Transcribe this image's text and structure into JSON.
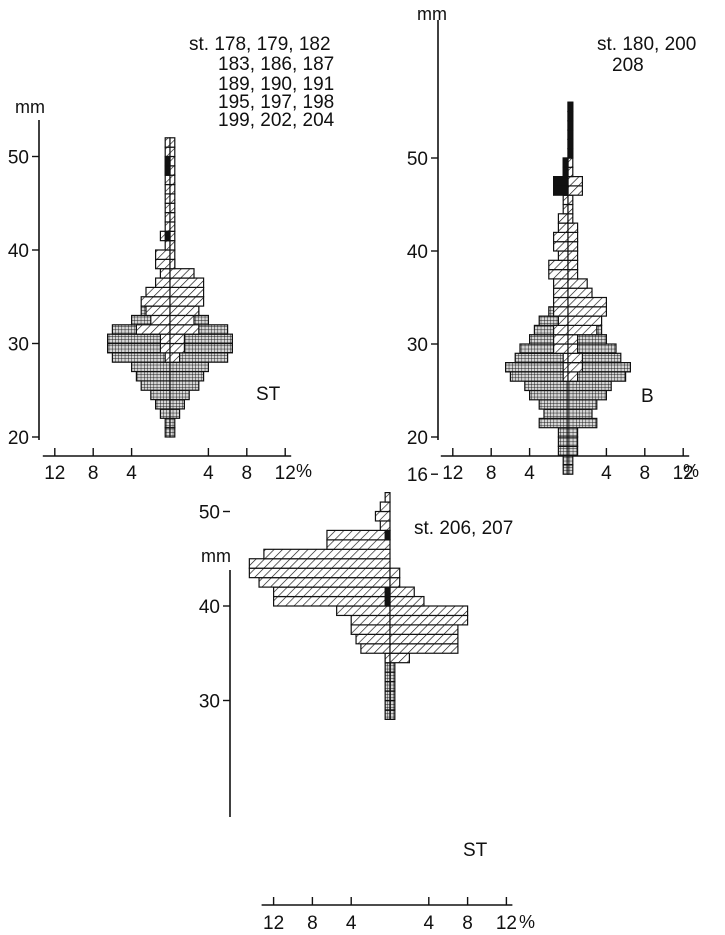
{
  "chart_data": [
    {
      "type": "bar",
      "orientation": "horizontal",
      "panel_label": "ST",
      "stations": [
        "st. 178, 179, 182",
        "183, 186, 187",
        "189, 190, 191",
        "195, 197, 198",
        "199, 202, 204"
      ],
      "y_unit": "mm",
      "x_unit": "%",
      "ylim": [
        20,
        52
      ],
      "yticks": [
        20,
        30,
        40,
        50
      ],
      "xticks": [
        "12",
        "8",
        "4",
        "4",
        "8",
        "12"
      ],
      "sides": [
        "left",
        "right"
      ],
      "series": [
        {
          "fill": "crosshatch",
          "left": [
            [
              20,
              0.5
            ],
            [
              21,
              0.5
            ],
            [
              22,
              1
            ],
            [
              23,
              1.5
            ],
            [
              24,
              2
            ],
            [
              25,
              3
            ],
            [
              26,
              3.5
            ],
            [
              27,
              4
            ],
            [
              28,
              6
            ],
            [
              29,
              6.5
            ],
            [
              30,
              6.5
            ],
            [
              31,
              6
            ],
            [
              32,
              4
            ],
            [
              33,
              3
            ],
            [
              34,
              2.5
            ],
            [
              35,
              1.5
            ],
            [
              36,
              1
            ],
            [
              37,
              0.5
            ],
            [
              38,
              0.5
            ]
          ],
          "right": [
            [
              20,
              0.5
            ],
            [
              21,
              0.5
            ],
            [
              22,
              1
            ],
            [
              23,
              1.5
            ],
            [
              24,
              2
            ],
            [
              25,
              3
            ],
            [
              26,
              3.5
            ],
            [
              27,
              4
            ],
            [
              28,
              6
            ],
            [
              29,
              6.5
            ],
            [
              30,
              6.5
            ],
            [
              31,
              6
            ],
            [
              32,
              4
            ],
            [
              33,
              3
            ],
            [
              34,
              2.5
            ],
            [
              35,
              1.5
            ],
            [
              36,
              1
            ],
            [
              37,
              0.5
            ],
            [
              38,
              0.5
            ]
          ]
        },
        {
          "fill": "hatch",
          "left": [
            [
              28,
              0.5
            ],
            [
              29,
              1
            ],
            [
              30,
              1
            ],
            [
              31,
              3.5
            ],
            [
              32,
              2
            ],
            [
              33,
              2.5
            ],
            [
              34,
              3
            ],
            [
              35,
              2.5
            ],
            [
              36,
              1.5
            ],
            [
              37,
              1
            ],
            [
              38,
              1.5
            ],
            [
              39,
              1.5
            ],
            [
              40,
              0.5
            ],
            [
              41,
              1
            ],
            [
              42,
              0.5
            ],
            [
              43,
              0.5
            ],
            [
              44,
              0.5
            ],
            [
              45,
              0.5
            ],
            [
              46,
              0.5
            ],
            [
              47,
              0.5
            ],
            [
              48,
              0.5
            ],
            [
              49,
              0.5
            ],
            [
              50,
              0.5
            ],
            [
              51,
              0.5
            ]
          ],
          "right": [
            [
              28,
              1
            ],
            [
              29,
              1.5
            ],
            [
              30,
              1.5
            ],
            [
              31,
              3
            ],
            [
              32,
              2.5
            ],
            [
              33,
              3
            ],
            [
              34,
              3.5
            ],
            [
              35,
              3.5
            ],
            [
              36,
              3.5
            ],
            [
              37,
              2.5
            ],
            [
              38,
              0.5
            ],
            [
              39,
              0.5
            ],
            [
              40,
              0.5
            ],
            [
              41,
              0.5
            ],
            [
              42,
              0.5
            ],
            [
              43,
              0.5
            ],
            [
              44,
              0.5
            ],
            [
              45,
              0.5
            ],
            [
              46,
              0.5
            ],
            [
              47,
              0.5
            ],
            [
              48,
              0.5
            ],
            [
              49,
              0.5
            ],
            [
              50,
              0.5
            ],
            [
              51,
              0.5
            ]
          ]
        },
        {
          "fill": "solid",
          "left": [
            [
              41,
              0.5
            ],
            [
              48,
              0.5
            ],
            [
              49,
              0.5
            ]
          ],
          "right": []
        }
      ]
    },
    {
      "type": "bar",
      "orientation": "horizontal",
      "panel_label": "B",
      "stations": [
        "st. 180, 200",
        "208"
      ],
      "y_unit": "mm",
      "x_unit": "%",
      "ylim": [
        16,
        56
      ],
      "yticks": [
        16,
        20,
        30,
        40,
        50
      ],
      "xticks": [
        "12",
        "8",
        "4",
        "4",
        "8",
        "12"
      ],
      "sides": [
        "left",
        "right"
      ],
      "series": [
        {
          "fill": "crosshatch",
          "left": [
            [
              16,
              0.5
            ],
            [
              17,
              0.5
            ],
            [
              18,
              1
            ],
            [
              19,
              1
            ],
            [
              20,
              1
            ],
            [
              21,
              3
            ],
            [
              22,
              2.5
            ],
            [
              23,
              3
            ],
            [
              24,
              4
            ],
            [
              25,
              4.5
            ],
            [
              26,
              6
            ],
            [
              27,
              6.5
            ],
            [
              28,
              5.5
            ],
            [
              29,
              5
            ],
            [
              30,
              4
            ],
            [
              31,
              3.5
            ],
            [
              32,
              3
            ],
            [
              33,
              2
            ],
            [
              34,
              1.5
            ],
            [
              35,
              1
            ]
          ],
          "right": [
            [
              16,
              0.5
            ],
            [
              17,
              0.5
            ],
            [
              18,
              1
            ],
            [
              19,
              1
            ],
            [
              20,
              1
            ],
            [
              21,
              3
            ],
            [
              22,
              2.5
            ],
            [
              23,
              3
            ],
            [
              24,
              4
            ],
            [
              25,
              4.5
            ],
            [
              26,
              6
            ],
            [
              27,
              6.5
            ],
            [
              28,
              5.5
            ],
            [
              29,
              5
            ],
            [
              30,
              4
            ],
            [
              31,
              3.5
            ],
            [
              32,
              3
            ],
            [
              33,
              2
            ],
            [
              34,
              1.5
            ],
            [
              35,
              1
            ]
          ]
        },
        {
          "fill": "hatch",
          "left": [
            [
              26,
              0.5
            ],
            [
              27,
              0.5
            ],
            [
              28,
              0.5
            ],
            [
              29,
              1.5
            ],
            [
              30,
              1.5
            ],
            [
              31,
              1.5
            ],
            [
              32,
              1
            ],
            [
              33,
              1.5
            ],
            [
              34,
              1.5
            ],
            [
              35,
              1.5
            ],
            [
              36,
              1.5
            ],
            [
              37,
              2
            ],
            [
              38,
              2
            ],
            [
              39,
              1
            ],
            [
              40,
              1.5
            ],
            [
              41,
              1.5
            ],
            [
              42,
              1
            ],
            [
              43,
              1
            ],
            [
              44,
              0.5
            ],
            [
              45,
              0.5
            ],
            [
              46,
              0.5
            ],
            [
              47,
              0.5
            ],
            [
              48,
              0.5
            ],
            [
              49,
              0.5
            ]
          ],
          "right": [
            [
              26,
              1
            ],
            [
              27,
              1.5
            ],
            [
              28,
              1.5
            ],
            [
              29,
              1
            ],
            [
              30,
              1
            ],
            [
              31,
              3
            ],
            [
              32,
              3.5
            ],
            [
              33,
              4
            ],
            [
              34,
              4
            ],
            [
              35,
              2.5
            ],
            [
              36,
              2
            ],
            [
              37,
              1
            ],
            [
              38,
              1
            ],
            [
              39,
              1
            ],
            [
              40,
              1
            ],
            [
              41,
              1
            ],
            [
              42,
              1
            ],
            [
              43,
              0.5
            ],
            [
              44,
              0.5
            ],
            [
              45,
              0.5
            ],
            [
              46,
              1.5
            ],
            [
              47,
              1.5
            ],
            [
              48,
              0.5
            ],
            [
              49,
              0.5
            ],
            [
              50,
              0.5
            ],
            [
              51,
              0.5
            ],
            [
              52,
              0.5
            ],
            [
              53,
              0.5
            ],
            [
              54,
              0.5
            ],
            [
              55,
              0.5
            ]
          ]
        },
        {
          "fill": "solid",
          "left": [
            [
              46,
              1.5
            ],
            [
              47,
              1.5
            ],
            [
              48,
              0.5
            ],
            [
              49,
              0.5
            ]
          ],
          "right": [
            [
              50,
              0.5
            ],
            [
              51,
              0.5
            ],
            [
              52,
              0.5
            ],
            [
              53,
              0.5
            ],
            [
              54,
              0.5
            ],
            [
              55,
              0.5
            ]
          ]
        }
      ]
    },
    {
      "type": "bar",
      "orientation": "horizontal",
      "panel_label": "ST",
      "stations": [
        "st. 206, 207"
      ],
      "y_unit": "mm",
      "x_unit": "%",
      "ylim": [
        28,
        52
      ],
      "yticks": [
        30,
        40,
        50
      ],
      "xticks": [
        "12",
        "8",
        "4",
        "4",
        "8",
        "12"
      ],
      "sides": [
        "left",
        "right"
      ],
      "series": [
        {
          "fill": "crosshatch",
          "left": [
            [
              28,
              0.5
            ],
            [
              29,
              0.5
            ],
            [
              30,
              0.5
            ],
            [
              31,
              0.5
            ],
            [
              32,
              0.5
            ],
            [
              33,
              0.5
            ],
            [
              34,
              0.5
            ],
            [
              35,
              0.5
            ]
          ],
          "right": [
            [
              28,
              0.5
            ],
            [
              29,
              0.5
            ],
            [
              30,
              0.5
            ],
            [
              31,
              0.5
            ],
            [
              32,
              0.5
            ],
            [
              33,
              0.5
            ],
            [
              34,
              0.5
            ],
            [
              35,
              0.5
            ]
          ]
        },
        {
          "fill": "hatch",
          "left": [
            [
              34,
              0.5
            ],
            [
              35,
              3
            ],
            [
              36,
              3.5
            ],
            [
              37,
              4
            ],
            [
              38,
              4
            ],
            [
              39,
              5.5
            ],
            [
              40,
              12
            ],
            [
              41,
              12
            ],
            [
              42,
              13.5
            ],
            [
              43,
              14.5
            ],
            [
              44,
              14.5
            ],
            [
              45,
              13
            ],
            [
              46,
              6.5
            ],
            [
              47,
              6.5
            ],
            [
              48,
              1
            ],
            [
              49,
              1.5
            ],
            [
              50,
              1
            ],
            [
              51,
              0.5
            ]
          ],
          "right": [
            [
              34,
              2
            ],
            [
              35,
              7
            ],
            [
              36,
              7
            ],
            [
              37,
              7
            ],
            [
              38,
              8
            ],
            [
              39,
              8
            ],
            [
              40,
              3.5
            ],
            [
              41,
              2.5
            ],
            [
              42,
              1
            ],
            [
              43,
              1
            ]
          ]
        },
        {
          "fill": "solid",
          "left": [
            [
              40,
              0.5
            ],
            [
              41,
              0.5
            ],
            [
              47,
              0.5
            ]
          ],
          "right": []
        }
      ]
    }
  ]
}
